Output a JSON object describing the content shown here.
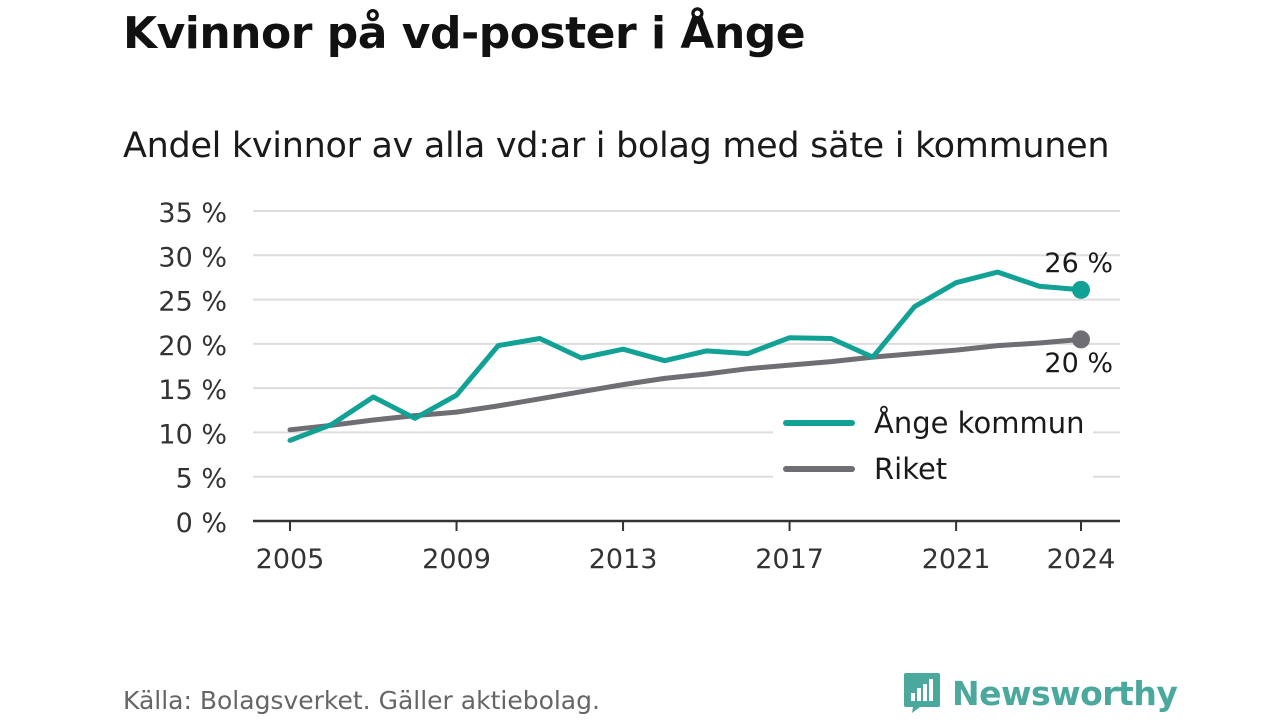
{
  "title": "Kvinnor på vd-poster i Ånge",
  "subtitle": "Andel kvinnor av alla vd:ar i bolag med säte i kommunen",
  "source": "Källa: Bolagsverket. Gäller aktiebolag.",
  "brand": {
    "name": "Newsworthy",
    "icon": "newsworthy-logo-icon"
  },
  "colors": {
    "ange": "#12a195",
    "riket": "#6f6e73",
    "grid": "#dddddd",
    "axis": "#333333"
  },
  "chart_data": {
    "type": "line",
    "x": [
      2005,
      2006,
      2007,
      2008,
      2009,
      2010,
      2011,
      2012,
      2013,
      2014,
      2015,
      2016,
      2017,
      2018,
      2019,
      2020,
      2021,
      2022,
      2023,
      2024
    ],
    "series": [
      {
        "name": "Ånge kommun",
        "values": [
          9.1,
          10.9,
          14.0,
          11.6,
          14.2,
          19.8,
          20.6,
          18.4,
          19.4,
          18.1,
          19.2,
          18.9,
          20.7,
          20.6,
          18.5,
          24.2,
          26.9,
          28.1,
          26.5,
          26.1
        ],
        "end_label": "26 %"
      },
      {
        "name": "Riket",
        "values": [
          10.3,
          10.8,
          11.4,
          11.9,
          12.3,
          13.0,
          13.8,
          14.6,
          15.4,
          16.1,
          16.6,
          17.2,
          17.6,
          18.0,
          18.5,
          18.9,
          19.3,
          19.8,
          20.1,
          20.5
        ],
        "end_label": "20 %"
      }
    ],
    "xticks": [
      2005,
      2009,
      2013,
      2017,
      2021,
      2024
    ],
    "yticks": [
      0,
      5,
      10,
      15,
      20,
      25,
      30,
      35
    ],
    "ytick_labels": [
      "0 %",
      "5 %",
      "10 %",
      "15 %",
      "20 %",
      "25 %",
      "30 %",
      "35 %"
    ],
    "ylim": [
      0,
      35
    ],
    "xlim": [
      2005,
      2024
    ],
    "grid": true,
    "legend_position": "bottom-right"
  }
}
